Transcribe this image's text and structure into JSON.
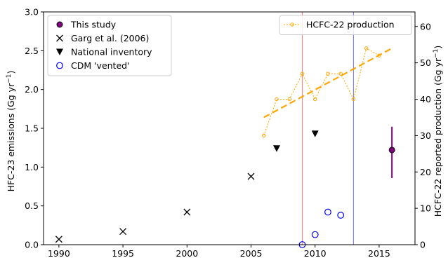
{
  "chart_data": {
    "type": "scatter",
    "xlim": [
      1988.8,
      2017.8
    ],
    "x_ticks": [
      1990,
      1995,
      2000,
      2005,
      2010,
      2015
    ],
    "left_axis": {
      "label": "HFC-23 emissions (Gg yr",
      "label_sup": "−1",
      "label_end": ")",
      "ylim": [
        0,
        3.0
      ],
      "ticks": [
        0.0,
        0.5,
        1.0,
        1.5,
        2.0,
        2.5,
        3.0
      ]
    },
    "right_axis": {
      "label": "HCFC-22 reported production (Gg yr",
      "label_sup": "−1",
      "label_end": ")",
      "ylim": [
        0,
        64
      ],
      "ticks": [
        0,
        10,
        20,
        30,
        40,
        50,
        60
      ]
    },
    "series": [
      {
        "name": "This study",
        "marker": "circle-filled",
        "color": "#800080",
        "axis": "left",
        "points": [
          {
            "x": 2016,
            "y": 1.22,
            "err_low": 0.86,
            "err_high": 1.52
          }
        ]
      },
      {
        "name": "Garg et al. (2006)",
        "marker": "x",
        "color": "#000000",
        "axis": "left",
        "points": [
          {
            "x": 1990,
            "y": 0.07
          },
          {
            "x": 1995,
            "y": 0.17
          },
          {
            "x": 2000,
            "y": 0.42
          },
          {
            "x": 2005,
            "y": 0.88
          }
        ]
      },
      {
        "name": "National inventory",
        "marker": "triangle-down",
        "color": "#000000",
        "axis": "left",
        "points": [
          {
            "x": 2007,
            "y": 1.24
          },
          {
            "x": 2010,
            "y": 1.43
          }
        ]
      },
      {
        "name": "CDM 'vented'",
        "marker": "circle-open",
        "color": "#0000ff",
        "axis": "left",
        "points": [
          {
            "x": 2009,
            "y": 0.0
          },
          {
            "x": 2010,
            "y": 0.13
          },
          {
            "x": 2011,
            "y": 0.42
          },
          {
            "x": 2012,
            "y": 0.38
          }
        ]
      },
      {
        "name": "HCFC-22 production",
        "marker": "small-circle-line",
        "color": "#ffa500",
        "axis": "right",
        "points": [
          {
            "x": 2006,
            "y": 30
          },
          {
            "x": 2007,
            "y": 40
          },
          {
            "x": 2008,
            "y": 40
          },
          {
            "x": 2009,
            "y": 47
          },
          {
            "x": 2010,
            "y": 40
          },
          {
            "x": 2011,
            "y": 47
          },
          {
            "x": 2012,
            "y": 47
          },
          {
            "x": 2013,
            "y": 40
          },
          {
            "x": 2014,
            "y": 54
          },
          {
            "x": 2015,
            "y": 52
          }
        ],
        "trend": {
          "x": [
            2006,
            2016
          ],
          "y": [
            35,
            54
          ]
        }
      }
    ],
    "vertical_lines": [
      {
        "x": 2009,
        "color": "#ff8080"
      },
      {
        "x": 2013,
        "color": "#8080ff"
      }
    ],
    "legends": [
      {
        "position": "upper-left",
        "entries": [
          "This study",
          "Garg et al. (2006)",
          "National inventory",
          "CDM 'vented'"
        ]
      },
      {
        "position": "upper-right",
        "entries": [
          "HCFC-22 production"
        ]
      }
    ]
  }
}
